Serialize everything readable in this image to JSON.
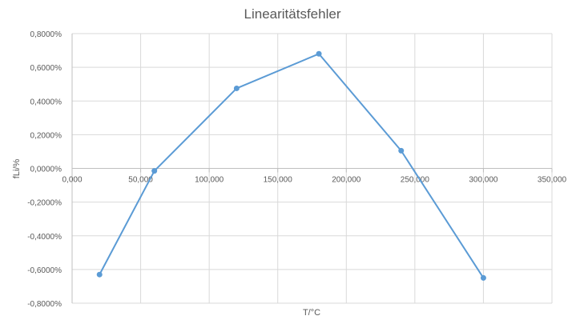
{
  "chart_data": {
    "type": "scatter",
    "title": "Linearitätsfehler",
    "xlabel": "T/°C",
    "ylabel": "fLi/%",
    "xlim": [
      0,
      350
    ],
    "ylim": [
      -0.8,
      0.8
    ],
    "x_ticks": [
      "0,000",
      "50,000",
      "100,000",
      "150,000",
      "200,000",
      "250,000",
      "300,000",
      "350,000"
    ],
    "y_ticks": [
      "0,8000%",
      "0,6000%",
      "0,4000%",
      "0,2000%",
      "0,0000%",
      "-0,2000%",
      "-0,4000%",
      "-0,6000%",
      "-0,8000%"
    ],
    "grid": true,
    "line_color": "#5b9bd5",
    "series": [
      {
        "x": [
          20,
          60,
          120,
          180,
          240,
          300
        ],
        "y": [
          -0.63,
          -0.015,
          0.475,
          0.68,
          0.105,
          -0.65
        ]
      }
    ]
  }
}
